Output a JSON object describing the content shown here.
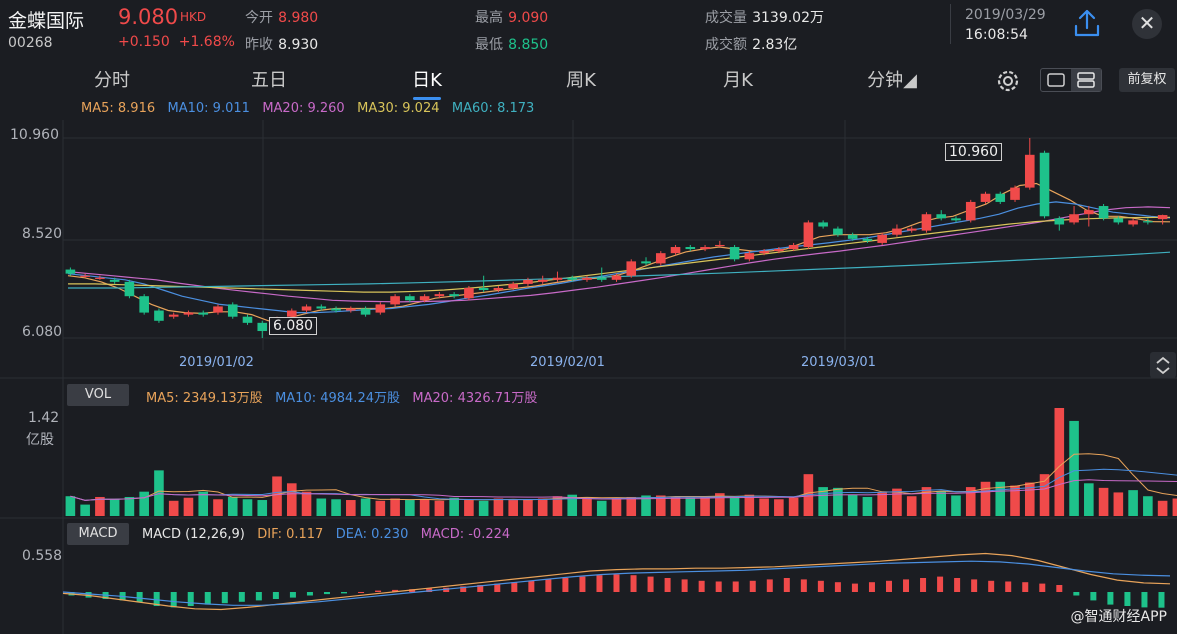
{
  "header": {
    "stock_name": "金蝶国际",
    "stock_code": "00268",
    "last_price": "9.080",
    "currency": "HKD",
    "change": "+0.150",
    "change_pct": "+1.68%",
    "open_label": "今开",
    "open_value": "8.980",
    "prev_close_label": "昨收",
    "prev_close_value": "8.930",
    "high_label": "最高",
    "high_value": "9.090",
    "low_label": "最低",
    "low_value": "8.850",
    "volume_label": "成交量",
    "volume_value": "3139.02万",
    "turnover_label": "成交额",
    "turnover_value": "2.83亿",
    "date": "2019/03/29",
    "time": "16:08:54",
    "close_symbol": "✕"
  },
  "tabs": [
    {
      "label": "分时"
    },
    {
      "label": "五日"
    },
    {
      "label": "日K"
    },
    {
      "label": "周K"
    },
    {
      "label": "月K"
    },
    {
      "label": "分钟◢"
    }
  ],
  "toolbar": {
    "adjust_label": "前复权"
  },
  "ma_legend": {
    "ma5": "MA5: 8.916",
    "ma10": "MA10: 9.011",
    "ma20": "MA20: 9.260",
    "ma30": "MA30: 9.024",
    "ma60": "MA60: 8.173"
  },
  "price_axis": {
    "top": "10.960",
    "mid": "8.520",
    "bottom": "6.080"
  },
  "annotations": {
    "max_label": "10.960",
    "min_label": "6.080"
  },
  "date_axis": [
    "2019/01/02",
    "2019/02/01",
    "2019/03/01"
  ],
  "vol_panel": {
    "pill": "VOL",
    "ma5": "MA5: 2349.13万股",
    "ma10": "MA10: 4984.24万股",
    "ma20": "MA20: 4326.71万股",
    "axis_top": "1.42",
    "axis_unit": "亿股"
  },
  "macd_panel": {
    "pill": "MACD",
    "params": "MACD (12,26,9)",
    "dif": "DIF: 0.117",
    "dea": "DEA: 0.230",
    "macd": "MACD: -0.224",
    "axis_top": "0.558"
  },
  "watermark": "@智通财经APP",
  "colors": {
    "up": "#f04a4a",
    "down": "#1ec28b",
    "ma5": "#e8a35a",
    "ma10": "#4b8fe0",
    "ma20": "#c86ac8",
    "ma30": "#d8c45a",
    "ma60": "#3fb0c0"
  },
  "chart_data": {
    "type": "candlestick",
    "x_range": [
      "2018/12",
      "2019/03/29"
    ],
    "y_range": [
      6.08,
      10.96
    ],
    "candles": [
      {
        "o": 7.75,
        "c": 7.65,
        "h": 7.8,
        "l": 7.6
      },
      {
        "o": 7.6,
        "c": 7.6,
        "h": 7.65,
        "l": 7.55
      },
      {
        "o": 7.55,
        "c": 7.55,
        "h": 7.6,
        "l": 7.5
      },
      {
        "o": 7.5,
        "c": 7.45,
        "h": 7.55,
        "l": 7.4
      },
      {
        "o": 7.45,
        "c": 7.1,
        "h": 7.5,
        "l": 7.05
      },
      {
        "o": 7.1,
        "c": 6.7,
        "h": 7.15,
        "l": 6.65
      },
      {
        "o": 6.75,
        "c": 6.5,
        "h": 6.8,
        "l": 6.45
      },
      {
        "o": 6.6,
        "c": 6.65,
        "h": 6.7,
        "l": 6.55
      },
      {
        "o": 6.65,
        "c": 6.7,
        "h": 6.75,
        "l": 6.6
      },
      {
        "o": 6.7,
        "c": 6.65,
        "h": 6.75,
        "l": 6.6
      },
      {
        "o": 6.7,
        "c": 6.85,
        "h": 6.9,
        "l": 6.65
      },
      {
        "o": 6.9,
        "c": 6.6,
        "h": 6.95,
        "l": 6.55
      },
      {
        "o": 6.6,
        "c": 6.45,
        "h": 6.65,
        "l": 6.4
      },
      {
        "o": 6.45,
        "c": 6.25,
        "h": 6.5,
        "l": 6.08
      },
      {
        "o": 6.3,
        "c": 6.55,
        "h": 6.6,
        "l": 6.25
      },
      {
        "o": 6.6,
        "c": 6.75,
        "h": 6.8,
        "l": 6.55
      },
      {
        "o": 6.75,
        "c": 6.85,
        "h": 6.9,
        "l": 6.7
      },
      {
        "o": 6.85,
        "c": 6.8,
        "h": 6.9,
        "l": 6.75
      },
      {
        "o": 6.8,
        "c": 6.75,
        "h": 6.85,
        "l": 6.7
      },
      {
        "o": 6.75,
        "c": 6.8,
        "h": 6.85,
        "l": 6.7
      },
      {
        "o": 6.8,
        "c": 6.65,
        "h": 6.85,
        "l": 6.6
      },
      {
        "o": 6.7,
        "c": 6.9,
        "h": 6.95,
        "l": 6.65
      },
      {
        "o": 6.9,
        "c": 7.1,
        "h": 7.15,
        "l": 6.85
      },
      {
        "o": 7.1,
        "c": 7.0,
        "h": 7.15,
        "l": 6.95
      },
      {
        "o": 7.0,
        "c": 7.1,
        "h": 7.15,
        "l": 6.95
      },
      {
        "o": 7.1,
        "c": 7.15,
        "h": 7.2,
        "l": 7.05
      },
      {
        "o": 7.15,
        "c": 7.1,
        "h": 7.2,
        "l": 7.05
      },
      {
        "o": 7.05,
        "c": 7.3,
        "h": 7.35,
        "l": 7.0
      },
      {
        "o": 7.3,
        "c": 7.25,
        "h": 7.6,
        "l": 7.2
      },
      {
        "o": 7.25,
        "c": 7.3,
        "h": 7.35,
        "l": 7.2
      },
      {
        "o": 7.3,
        "c": 7.4,
        "h": 7.45,
        "l": 7.25
      },
      {
        "o": 7.4,
        "c": 7.5,
        "h": 7.55,
        "l": 7.35
      },
      {
        "o": 7.45,
        "c": 7.5,
        "h": 7.6,
        "l": 7.4
      },
      {
        "o": 7.5,
        "c": 7.55,
        "h": 7.7,
        "l": 7.45
      },
      {
        "o": 7.55,
        "c": 7.5,
        "h": 7.6,
        "l": 7.45
      },
      {
        "o": 7.5,
        "c": 7.55,
        "h": 7.6,
        "l": 7.45
      },
      {
        "o": 7.55,
        "c": 7.5,
        "h": 7.8,
        "l": 7.45
      },
      {
        "o": 7.5,
        "c": 7.6,
        "h": 7.65,
        "l": 7.45
      },
      {
        "o": 7.6,
        "c": 7.95,
        "h": 8.0,
        "l": 7.55
      },
      {
        "o": 7.95,
        "c": 7.9,
        "h": 8.05,
        "l": 7.85
      },
      {
        "o": 7.9,
        "c": 8.15,
        "h": 8.2,
        "l": 7.85
      },
      {
        "o": 8.15,
        "c": 8.3,
        "h": 8.35,
        "l": 8.1
      },
      {
        "o": 8.3,
        "c": 8.25,
        "h": 8.35,
        "l": 8.2
      },
      {
        "o": 8.25,
        "c": 8.3,
        "h": 8.35,
        "l": 8.2
      },
      {
        "o": 8.35,
        "c": 8.35,
        "h": 8.45,
        "l": 8.3
      },
      {
        "o": 8.3,
        "c": 8.0,
        "h": 8.35,
        "l": 7.95
      },
      {
        "o": 8.0,
        "c": 8.15,
        "h": 8.2,
        "l": 7.95
      },
      {
        "o": 8.15,
        "c": 8.2,
        "h": 8.25,
        "l": 8.1
      },
      {
        "o": 8.2,
        "c": 8.25,
        "h": 8.3,
        "l": 8.15
      },
      {
        "o": 8.25,
        "c": 8.35,
        "h": 8.4,
        "l": 8.2
      },
      {
        "o": 8.3,
        "c": 8.9,
        "h": 8.95,
        "l": 8.25
      },
      {
        "o": 8.9,
        "c": 8.8,
        "h": 8.95,
        "l": 8.75
      },
      {
        "o": 8.75,
        "c": 8.6,
        "h": 8.8,
        "l": 8.55
      },
      {
        "o": 8.6,
        "c": 8.5,
        "h": 8.65,
        "l": 8.45
      },
      {
        "o": 8.5,
        "c": 8.45,
        "h": 8.55,
        "l": 8.4
      },
      {
        "o": 8.4,
        "c": 8.6,
        "h": 8.65,
        "l": 8.35
      },
      {
        "o": 8.6,
        "c": 8.75,
        "h": 8.85,
        "l": 8.55
      },
      {
        "o": 8.7,
        "c": 8.75,
        "h": 8.8,
        "l": 8.65
      },
      {
        "o": 8.7,
        "c": 9.1,
        "h": 9.15,
        "l": 8.65
      },
      {
        "o": 9.1,
        "c": 9.0,
        "h": 9.2,
        "l": 8.95
      },
      {
        "o": 9.0,
        "c": 8.95,
        "h": 9.05,
        "l": 8.9
      },
      {
        "o": 8.95,
        "c": 9.4,
        "h": 9.45,
        "l": 8.9
      },
      {
        "o": 9.4,
        "c": 9.6,
        "h": 9.65,
        "l": 9.35
      },
      {
        "o": 9.6,
        "c": 9.4,
        "h": 9.65,
        "l": 9.35
      },
      {
        "o": 9.45,
        "c": 9.75,
        "h": 9.8,
        "l": 9.4
      },
      {
        "o": 9.75,
        "c": 10.55,
        "h": 10.96,
        "l": 9.7
      },
      {
        "o": 10.6,
        "c": 9.05,
        "h": 10.65,
        "l": 9.0
      },
      {
        "o": 9.0,
        "c": 8.85,
        "h": 9.05,
        "l": 8.7
      },
      {
        "o": 8.9,
        "c": 9.1,
        "h": 9.3,
        "l": 8.85
      },
      {
        "o": 9.1,
        "c": 9.2,
        "h": 9.3,
        "l": 8.8
      },
      {
        "o": 9.3,
        "c": 9.0,
        "h": 9.35,
        "l": 8.95
      },
      {
        "o": 9.0,
        "c": 8.9,
        "h": 9.05,
        "l": 8.85
      },
      {
        "o": 8.85,
        "c": 8.95,
        "h": 9.0,
        "l": 8.8
      },
      {
        "o": 8.93,
        "c": 8.9,
        "h": 9.0,
        "l": 8.85
      },
      {
        "o": 8.98,
        "c": 9.08,
        "h": 9.09,
        "l": 8.85
      }
    ],
    "ma_lines": {
      "ma5": [
        7.6,
        7.55,
        7.45,
        7.3,
        7.1,
        6.9,
        6.75,
        6.7,
        6.68,
        6.72,
        6.72,
        6.65,
        6.5,
        6.55,
        6.65,
        6.75,
        6.8,
        6.8,
        6.8,
        6.8,
        6.85,
        6.95,
        7.05,
        7.1,
        7.15,
        7.2,
        7.25,
        7.3,
        7.35,
        7.42,
        7.48,
        7.52,
        7.55,
        7.62,
        7.75,
        7.9,
        8.05,
        8.18,
        8.25,
        8.3,
        8.25,
        8.2,
        8.2,
        8.25,
        8.4,
        8.55,
        8.6,
        8.6,
        8.6,
        8.65,
        8.75,
        8.9,
        9.0,
        9.05,
        9.2,
        9.35,
        9.6,
        9.8,
        9.85,
        9.65,
        9.45,
        9.2,
        9.05,
        9.05,
        8.99,
        8.92,
        8.916
      ],
      "ma10": [
        7.65,
        7.6,
        7.55,
        7.5,
        7.4,
        7.25,
        7.1,
        7.0,
        6.9,
        6.85,
        6.8,
        6.75,
        6.7,
        6.7,
        6.72,
        6.75,
        6.78,
        6.8,
        6.85,
        6.9,
        6.97,
        7.05,
        7.12,
        7.2,
        7.28,
        7.35,
        7.42,
        7.5,
        7.58,
        7.66,
        7.74,
        7.82,
        7.9,
        7.98,
        8.06,
        8.12,
        8.18,
        8.24,
        8.3,
        8.35,
        8.4,
        8.46,
        8.52,
        8.6,
        8.68,
        8.76,
        8.84,
        8.92,
        9.0,
        9.1,
        9.25,
        9.35,
        9.4,
        9.35,
        9.25,
        9.15,
        9.1,
        9.05,
        9.011
      ],
      "ma20": [
        7.7,
        7.65,
        7.6,
        7.55,
        7.5,
        7.42,
        7.35,
        7.28,
        7.22,
        7.16,
        7.1,
        7.05,
        7.0,
        6.98,
        6.97,
        6.96,
        6.97,
        6.98,
        7.0,
        7.04,
        7.08,
        7.12,
        7.18,
        7.25,
        7.32,
        7.4,
        7.48,
        7.56,
        7.65,
        7.74,
        7.83,
        7.92,
        8.0,
        8.07,
        8.14,
        8.2,
        8.27,
        8.34,
        8.42,
        8.5,
        8.58,
        8.66,
        8.74,
        8.82,
        8.9,
        9.0,
        9.1,
        9.2,
        9.26,
        9.28,
        9.26
      ],
      "ma30": [
        7.4,
        7.4,
        7.38,
        7.36,
        7.34,
        7.32,
        7.3,
        7.28,
        7.26,
        7.24,
        7.22,
        7.2,
        7.2,
        7.22,
        7.25,
        7.3,
        7.36,
        7.42,
        7.5,
        7.58,
        7.66,
        7.74,
        7.82,
        7.9,
        7.98,
        8.06,
        8.14,
        8.22,
        8.3,
        8.38,
        8.46,
        8.54,
        8.62,
        8.7,
        8.78,
        8.86,
        8.92,
        8.96,
        8.99,
        9.01,
        9.02,
        9.024
      ],
      "ma60": [
        7.3,
        7.3,
        7.32,
        7.34,
        7.36,
        7.38,
        7.4,
        7.43,
        7.46,
        7.5,
        7.54,
        7.58,
        7.62,
        7.66,
        7.71,
        7.76,
        7.81,
        7.86,
        7.92,
        7.98,
        8.04,
        8.1,
        8.173
      ]
    },
    "volume": [
      2600,
      1500,
      2500,
      2200,
      2500,
      3200,
      6000,
      2000,
      2400,
      3200,
      2200,
      2500,
      2200,
      2100,
      5200,
      4300,
      3200,
      2300,
      2200,
      2100,
      2300,
      2000,
      2300,
      2100,
      2200,
      2000,
      2400,
      2100,
      2000,
      2300,
      2100,
      2200,
      2300,
      2600,
      2800,
      2300,
      2000,
      2400,
      2500,
      2700,
      2700,
      2500,
      2400,
      2500,
      3000,
      2500,
      2800,
      2300,
      2200,
      2400,
      5500,
      3800,
      3700,
      2800,
      2500,
      3100,
      3600,
      2600,
      3800,
      3300,
      2700,
      3800,
      4500,
      4500,
      4000,
      4400,
      5500,
      14200,
      12500,
      4300,
      3700,
      3100,
      3400,
      2600,
      2000,
      2300,
      3000
    ],
    "volume_up": [
      false,
      false,
      true,
      false,
      false,
      false,
      false,
      true,
      true,
      false,
      true,
      false,
      false,
      false,
      true,
      true,
      true,
      false,
      false,
      true,
      false,
      true,
      true,
      false,
      true,
      true,
      false,
      true,
      false,
      true,
      true,
      true,
      true,
      true,
      false,
      true,
      false,
      true,
      true,
      false,
      true,
      true,
      false,
      true,
      true,
      false,
      true,
      true,
      true,
      true,
      true,
      false,
      false,
      false,
      false,
      true,
      true,
      true,
      true,
      false,
      false,
      true,
      true,
      false,
      true,
      true,
      true,
      true,
      false,
      false,
      true,
      true,
      false,
      false,
      true,
      true,
      true
    ],
    "macd_hist": [
      -0.05,
      -0.08,
      -0.1,
      -0.12,
      -0.15,
      -0.2,
      -0.22,
      -0.2,
      -0.18,
      -0.16,
      -0.14,
      -0.12,
      -0.1,
      -0.08,
      -0.05,
      -0.03,
      -0.02,
      0.0,
      0.02,
      0.03,
      0.04,
      0.05,
      0.06,
      0.08,
      0.1,
      0.12,
      0.14,
      0.16,
      0.18,
      0.2,
      0.22,
      0.24,
      0.25,
      0.24,
      0.22,
      0.2,
      0.18,
      0.16,
      0.15,
      0.15,
      0.16,
      0.18,
      0.2,
      0.18,
      0.16,
      0.14,
      0.12,
      0.14,
      0.16,
      0.18,
      0.2,
      0.22,
      0.2,
      0.18,
      0.16,
      0.15,
      0.14,
      0.12,
      0.1,
      -0.05,
      -0.12,
      -0.18,
      -0.2,
      -0.22,
      -0.224
    ],
    "dif": [
      -0.02,
      -0.05,
      -0.1,
      -0.15,
      -0.2,
      -0.24,
      -0.25,
      -0.22,
      -0.18,
      -0.14,
      -0.1,
      -0.06,
      -0.02,
      0.02,
      0.06,
      0.1,
      0.14,
      0.18,
      0.22,
      0.26,
      0.3,
      0.32,
      0.33,
      0.33,
      0.34,
      0.34,
      0.35,
      0.36,
      0.38,
      0.4,
      0.42,
      0.44,
      0.47,
      0.5,
      0.53,
      0.55,
      0.52,
      0.45,
      0.35,
      0.25,
      0.17,
      0.13,
      0.117
    ],
    "dea": [
      0.0,
      -0.03,
      -0.06,
      -0.1,
      -0.14,
      -0.17,
      -0.19,
      -0.19,
      -0.17,
      -0.14,
      -0.1,
      -0.06,
      -0.02,
      0.02,
      0.06,
      0.1,
      0.14,
      0.18,
      0.22,
      0.25,
      0.27,
      0.28,
      0.29,
      0.3,
      0.31,
      0.33,
      0.35,
      0.37,
      0.39,
      0.41,
      0.42,
      0.43,
      0.44,
      0.43,
      0.4,
      0.35,
      0.3,
      0.26,
      0.24,
      0.23
    ]
  }
}
